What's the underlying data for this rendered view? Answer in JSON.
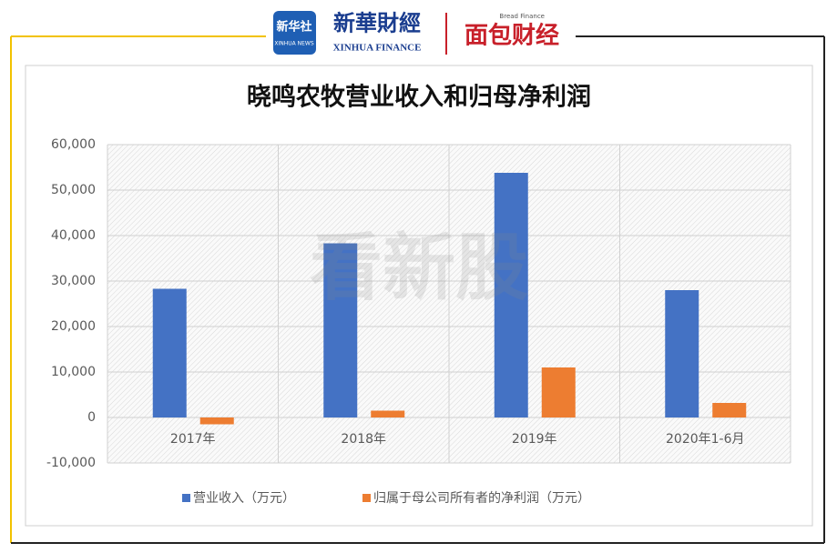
{
  "header": {
    "logo_text": "新华社",
    "logo_sub": "XINHUA NEWS",
    "brand": "新華財經",
    "brand_sub": "XINHUA FINANCE",
    "partner_sub": "Bread Finance",
    "partner": "面包财经"
  },
  "watermark": "看新股",
  "chart_data": {
    "type": "bar",
    "title": "晓鸣农牧营业收入和归母净利润",
    "categories": [
      "2017年",
      "2018年",
      "2019年",
      "2020年1-6月"
    ],
    "series": [
      {
        "name": "营业收入（万元）",
        "color": "#4472c4",
        "values": [
          28300,
          38300,
          53800,
          28000
        ]
      },
      {
        "name": "归属于母公司所有者的净利润（万元）",
        "color": "#ed7d31",
        "values": [
          -1500,
          1500,
          11000,
          3200
        ]
      }
    ],
    "ylim": [
      -10000,
      60000
    ],
    "yticks": [
      {
        "value": -10000,
        "label": "-10,000"
      },
      0,
      {
        "value": 10000,
        "label": "10,000"
      },
      {
        "value": 20000,
        "label": "20,000"
      },
      {
        "value": 30000,
        "label": "30,000"
      },
      {
        "value": 40000,
        "label": "40,000"
      },
      {
        "value": 50000,
        "label": "50,000"
      },
      {
        "value": 60000,
        "label": "60,000"
      }
    ],
    "grid": true,
    "legend": "bottom"
  }
}
